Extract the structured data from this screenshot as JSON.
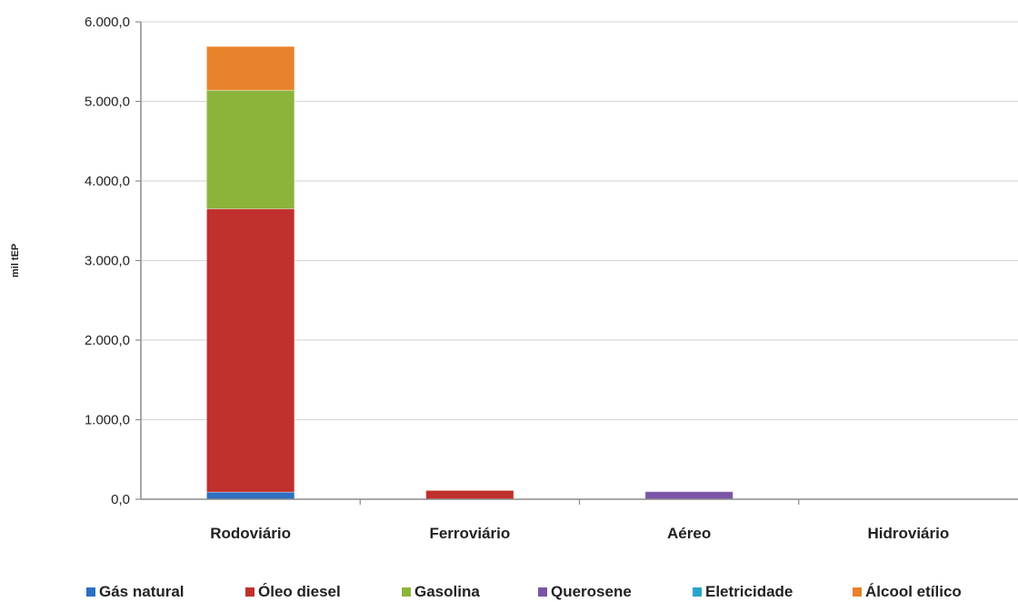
{
  "chart_data": {
    "type": "bar",
    "stacked": true,
    "title": "",
    "xlabel": "",
    "ylabel": "mil tEP",
    "ylim": [
      0,
      6000
    ],
    "yticks": [
      0,
      1000,
      2000,
      3000,
      4000,
      5000,
      6000
    ],
    "ytick_labels": [
      "0,0",
      "1.000,0",
      "2.000,0",
      "3.000,0",
      "4.000,0",
      "5.000,0",
      "6.000,0"
    ],
    "grid": true,
    "legend_position": "bottom",
    "categories": [
      "Rodoviário",
      "Ferroviário",
      "Aéreo",
      "Hidroviário"
    ],
    "series": [
      {
        "name": "Gás natural",
        "color": "#2e6fc0",
        "values": [
          90,
          0,
          0,
          0
        ]
      },
      {
        "name": "Óleo diesel",
        "color": "#c0302c",
        "values": [
          3560,
          110,
          0,
          0
        ]
      },
      {
        "name": "Gasolina",
        "color": "#8cb43c",
        "values": [
          1490,
          0,
          0,
          0
        ]
      },
      {
        "name": "Querosene",
        "color": "#7a55a6",
        "values": [
          0,
          0,
          95,
          0
        ]
      },
      {
        "name": "Eletricidade",
        "color": "#2aa3c8",
        "values": [
          0,
          0,
          0,
          0
        ]
      },
      {
        "name": "Álcool etílico",
        "color": "#e8822a",
        "values": [
          550,
          0,
          0,
          0
        ]
      }
    ]
  }
}
